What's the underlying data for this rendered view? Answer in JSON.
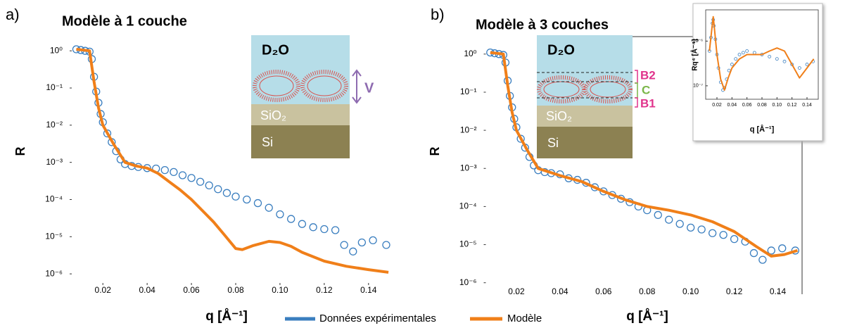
{
  "chart_data": [
    {
      "type": "line",
      "panel_label": "a)",
      "title": "Modèle à 1 couche",
      "ylabel": "R",
      "xlabel": "q [Å⁻¹]",
      "log_y": true,
      "xlim": [
        0.005,
        0.155
      ],
      "ylim": [
        5e-07,
        3
      ],
      "xticks": [
        0.02,
        0.04,
        0.06,
        0.08,
        {
          "value": 0.1,
          "label": "0.10"
        },
        0.12,
        0.14
      ],
      "yticks": [
        {
          "value": 1,
          "label": "10⁰"
        },
        {
          "value": 0.1,
          "label": "10⁻¹"
        },
        {
          "value": 0.01,
          "label": "10⁻²"
        },
        {
          "value": 0.001,
          "label": "10⁻³"
        },
        {
          "value": 0.0001,
          "label": "10⁻⁴"
        },
        {
          "value": 1e-05,
          "label": "10⁻⁵"
        },
        {
          "value": 1e-06,
          "label": "10⁻⁶"
        }
      ],
      "diagram_labels": [
        "D₂O",
        "SiO₂",
        "Si",
        "V"
      ],
      "series": [
        {
          "name": "Données expérimentales",
          "color": "#3a7ebf",
          "style": "markers",
          "x": [
            0.008,
            0.01,
            0.012,
            0.014,
            0.015,
            0.016,
            0.017,
            0.018,
            0.019,
            0.02,
            0.022,
            0.024,
            0.026,
            0.028,
            0.03,
            0.033,
            0.036,
            0.04,
            0.044,
            0.048,
            0.052,
            0.056,
            0.06,
            0.064,
            0.068,
            0.072,
            0.076,
            0.08,
            0.085,
            0.09,
            0.095,
            0.1,
            0.105,
            0.11,
            0.115,
            0.12,
            0.125,
            0.129,
            0.133,
            0.137,
            0.142,
            0.148
          ],
          "values": [
            1.1,
            1.05,
            1.0,
            0.95,
            0.6,
            0.2,
            0.08,
            0.04,
            0.02,
            0.012,
            0.006,
            0.0035,
            0.002,
            0.0012,
            0.0009,
            0.0008,
            0.00075,
            0.0007,
            0.00068,
            0.00062,
            0.00055,
            0.00045,
            0.00038,
            0.0003,
            0.00024,
            0.00019,
            0.00015,
            0.00012,
            0.0001,
            8e-05,
            6e-05,
            4e-05,
            3e-05,
            2.2e-05,
            1.8e-05,
            1.6e-05,
            1.5e-05,
            6e-06,
            4e-06,
            7e-06,
            8e-06,
            6e-06
          ]
        },
        {
          "name": "Modèle",
          "color": "#f07f19",
          "style": "line",
          "x": [
            0.008,
            0.014,
            0.016,
            0.018,
            0.02,
            0.025,
            0.03,
            0.035,
            0.04,
            0.045,
            0.05,
            0.055,
            0.06,
            0.065,
            0.07,
            0.075,
            0.08,
            0.083,
            0.088,
            0.095,
            0.1,
            0.105,
            0.11,
            0.12,
            0.13,
            0.14,
            0.149
          ],
          "values": [
            1.1,
            1.0,
            0.15,
            0.03,
            0.01,
            0.003,
            0.001,
            0.0008,
            0.0007,
            0.0005,
            0.0003,
            0.00018,
            0.0001,
            5e-05,
            2.5e-05,
            1.1e-05,
            4.8e-06,
            4.5e-06,
            5.8e-06,
            7.5e-06,
            7e-06,
            5.5e-06,
            3.8e-06,
            2.2e-06,
            1.6e-06,
            1.3e-06,
            1.1e-06
          ]
        }
      ]
    },
    {
      "type": "line",
      "panel_label": "b)",
      "title": "Modèle à 3 couches",
      "ylabel": "R",
      "xlabel": "q [Å⁻¹]",
      "log_y": true,
      "xlim": [
        0.005,
        0.155
      ],
      "ylim": [
        5e-07,
        3
      ],
      "xticks": [
        0.02,
        0.04,
        0.06,
        0.08,
        {
          "value": 0.1,
          "label": "0.10"
        },
        0.12,
        0.14
      ],
      "yticks": [
        {
          "value": 1,
          "label": "10⁰"
        },
        {
          "value": 0.1,
          "label": "10⁻¹"
        },
        {
          "value": 0.01,
          "label": "10⁻²"
        },
        {
          "value": 0.001,
          "label": "10⁻³"
        },
        {
          "value": 0.0001,
          "label": "10⁻⁴"
        },
        {
          "value": 1e-05,
          "label": "10⁻⁵"
        },
        {
          "value": 1e-06,
          "label": "10⁻⁶"
        }
      ],
      "diagram_labels": [
        "D₂O",
        "SiO₂",
        "Si",
        "B2",
        "C",
        "B1"
      ],
      "series": [
        {
          "color": "#3a7ebf",
          "style": "markers",
          "x": [
            0.008,
            0.01,
            0.012,
            0.014,
            0.015,
            0.016,
            0.017,
            0.018,
            0.019,
            0.02,
            0.022,
            0.024,
            0.026,
            0.028,
            0.03,
            0.033,
            0.036,
            0.04,
            0.044,
            0.048,
            0.052,
            0.056,
            0.06,
            0.064,
            0.068,
            0.072,
            0.076,
            0.08,
            0.085,
            0.09,
            0.095,
            0.1,
            0.105,
            0.11,
            0.115,
            0.12,
            0.125,
            0.129,
            0.133,
            0.137,
            0.142,
            0.148
          ],
          "values": [
            1.1,
            1.05,
            1.0,
            0.95,
            0.6,
            0.2,
            0.08,
            0.04,
            0.02,
            0.012,
            0.006,
            0.0035,
            0.002,
            0.0012,
            0.0009,
            0.0008,
            0.00075,
            0.0007,
            0.00055,
            0.0005,
            0.00042,
            0.00032,
            0.00025,
            0.0002,
            0.00016,
            0.00013,
            0.0001,
            8e-05,
            6e-05,
            4.5e-05,
            3.5e-05,
            2.8e-05,
            2.5e-05,
            2e-05,
            1.8e-05,
            1.4e-05,
            1.2e-05,
            6e-06,
            4e-06,
            7e-06,
            8e-06,
            7e-06
          ]
        },
        {
          "color": "#f07f19",
          "style": "line",
          "x": [
            0.008,
            0.014,
            0.016,
            0.018,
            0.02,
            0.025,
            0.03,
            0.04,
            0.05,
            0.06,
            0.07,
            0.08,
            0.09,
            0.1,
            0.11,
            0.12,
            0.13,
            0.137,
            0.143,
            0.149
          ],
          "values": [
            1.1,
            1.0,
            0.15,
            0.03,
            0.01,
            0.003,
            0.001,
            0.00065,
            0.00045,
            0.00025,
            0.00015,
            0.0001,
            8e-05,
            6e-05,
            4e-05,
            2.2e-05,
            9e-06,
            5e-06,
            5.5e-06,
            7e-06
          ]
        }
      ]
    },
    {
      "type": "line",
      "ylabel": "Rq⁴ [Å⁻⁴]",
      "xlabel": "q [Å⁻¹]",
      "log_y": true,
      "xlim": [
        0.005,
        0.155
      ],
      "ylim": [
        5e-08,
        5e-06
      ],
      "xticks": [
        0.02,
        0.04,
        0.06,
        0.08,
        {
          "value": 0.1,
          "label": "0.10"
        },
        0.12,
        0.14
      ],
      "yticks": [
        {
          "value": 1e-06,
          "label": "10⁻⁶"
        },
        {
          "value": 1e-07,
          "label": "10⁻⁷"
        }
      ],
      "series": [
        {
          "color": "#3a7ebf",
          "style": "markers",
          "x": [
            0.01,
            0.012,
            0.014,
            0.015,
            0.016,
            0.018,
            0.02,
            0.022,
            0.025,
            0.028,
            0.03,
            0.033,
            0.036,
            0.04,
            0.045,
            0.05,
            0.055,
            0.06,
            0.07,
            0.08,
            0.09,
            0.1,
            0.11,
            0.12,
            0.13,
            0.14,
            0.148
          ],
          "values": [
            6e-07,
            1.2e-06,
            2.5e-06,
            3e-06,
            2.2e-06,
            1.1e-06,
            5e-07,
            2.5e-07,
            1.2e-07,
            8e-08,
            9e-08,
            1.4e-07,
            2.2e-07,
            3e-07,
            4e-07,
            5e-07,
            5.5e-07,
            6e-07,
            5.5e-07,
            5e-07,
            4.5e-07,
            4e-07,
            3.5e-07,
            3e-07,
            2.5e-07,
            3e-07,
            3.5e-07
          ]
        },
        {
          "color": "#f07f19",
          "style": "line",
          "x": [
            0.01,
            0.014,
            0.015,
            0.016,
            0.018,
            0.02,
            0.025,
            0.03,
            0.035,
            0.04,
            0.05,
            0.06,
            0.07,
            0.08,
            0.09,
            0.1,
            0.11,
            0.12,
            0.13,
            0.14,
            0.149
          ],
          "values": [
            6e-07,
            2.5e-06,
            3.5e-06,
            2.5e-06,
            1.1e-06,
            5e-07,
            1.4e-07,
            8e-08,
            1.5e-07,
            2.5e-07,
            4e-07,
            5e-07,
            5e-07,
            5e-07,
            6e-07,
            7e-07,
            6e-07,
            3e-07,
            1.5e-07,
            2.5e-07,
            4e-07
          ]
        }
      ]
    }
  ]
}
